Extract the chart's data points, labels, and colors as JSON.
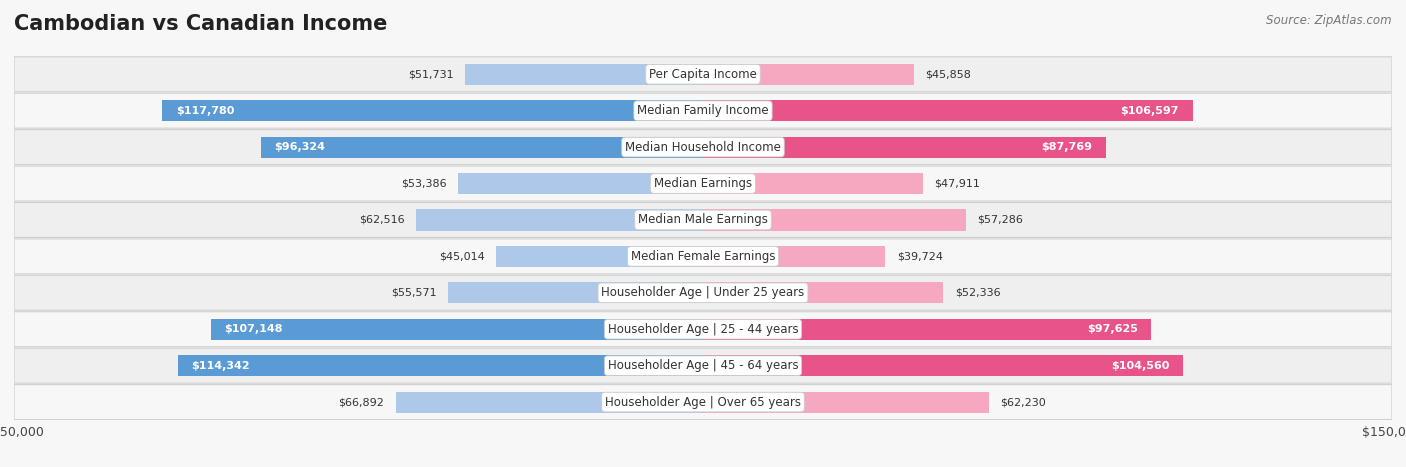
{
  "title": "Cambodian vs Canadian Income",
  "source": "Source: ZipAtlas.com",
  "categories": [
    "Per Capita Income",
    "Median Family Income",
    "Median Household Income",
    "Median Earnings",
    "Median Male Earnings",
    "Median Female Earnings",
    "Householder Age | Under 25 years",
    "Householder Age | 25 - 44 years",
    "Householder Age | 45 - 64 years",
    "Householder Age | Over 65 years"
  ],
  "cambodian_values": [
    51731,
    117780,
    96324,
    53386,
    62516,
    45014,
    55571,
    107148,
    114342,
    66892
  ],
  "canadian_values": [
    45858,
    106597,
    87769,
    47911,
    57286,
    39724,
    52336,
    97625,
    104560,
    62230
  ],
  "max_value": 150000,
  "cambodian_color_light": "#adc8e8",
  "cambodian_color_dark": "#5b9bd5",
  "canadian_color_light": "#f5a8c0",
  "canadian_color_dark": "#e8538a",
  "background_color": "#f7f7f7",
  "row_color_even": "#efefef",
  "row_color_odd": "#f7f7f7",
  "title_fontsize": 15,
  "label_fontsize": 8.5,
  "value_fontsize": 8.0,
  "legend_fontsize": 9,
  "source_fontsize": 8.5,
  "bar_height": 0.58,
  "threshold_cambodian": 90000,
  "threshold_canadian": 80000
}
